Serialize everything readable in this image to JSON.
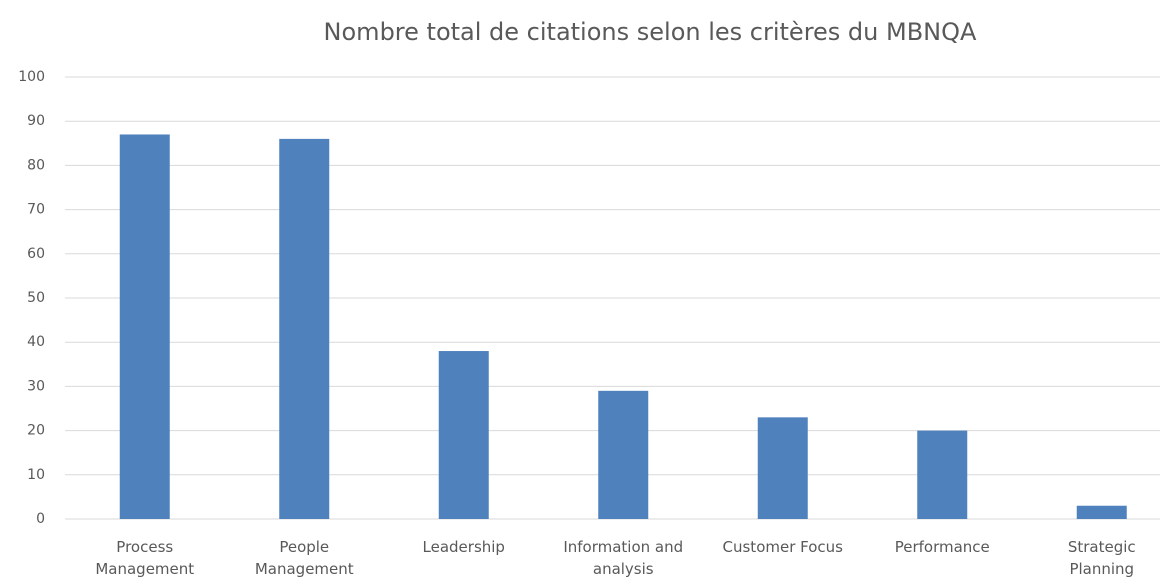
{
  "chart_data": {
    "type": "bar",
    "title": "Nombre total de citations selon les critères du MBNQA",
    "categories": [
      "Process Management",
      "People Management",
      "Leadership",
      "Information and analysis",
      "Customer Focus",
      "Performance",
      "Strategic Planning"
    ],
    "values": [
      87,
      86,
      38,
      29,
      23,
      20,
      3
    ],
    "color": "#4f81bd",
    "ylim": [
      0,
      100
    ],
    "yticks": [
      0,
      10,
      20,
      30,
      40,
      50,
      60,
      70,
      80,
      90,
      100
    ],
    "grid": true
  }
}
